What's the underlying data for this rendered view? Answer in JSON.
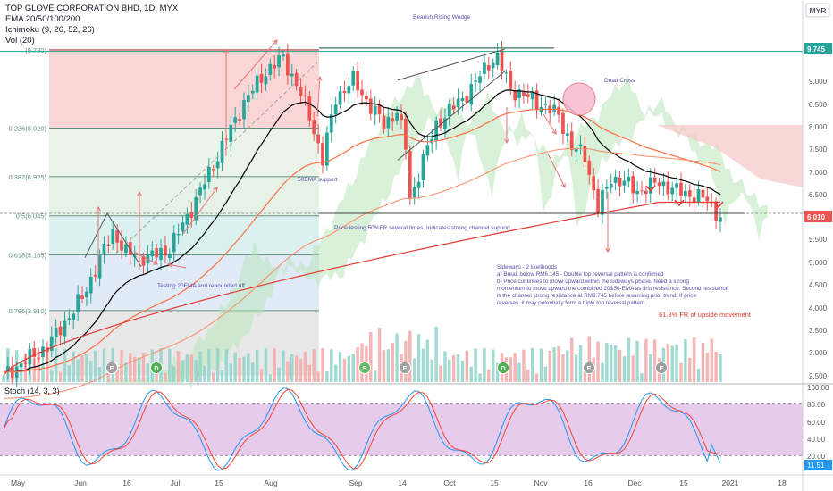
{
  "header": {
    "symbol_title": "TOP GLOVE CORPORATION BHD, 1D, MYX",
    "indicators": [
      "EMA 20/50/100/200",
      "Ichimoku (9, 26, 52, 26)",
      "Vol (20)"
    ],
    "currency": "MYR"
  },
  "chart_data": {
    "type": "candlestick",
    "price_axis": {
      "ylim": [
        2.3,
        10.1
      ],
      "ticks": [
        "2.500",
        "3.000",
        "3.500",
        "4.000",
        "4.500",
        "5.000",
        "5.500",
        "6.500",
        "7.000",
        "7.500",
        "8.000",
        "8.500",
        "9.000"
      ],
      "last_price_label": "6.010",
      "high_label": "9.745"
    },
    "time_axis": {
      "labels": [
        "May",
        "Jun",
        "16",
        "Jul",
        "15",
        "Aug",
        "Sep",
        "14",
        "Oct",
        "15",
        "Nov",
        "16",
        "Dec",
        "15",
        "2021",
        "18"
      ]
    },
    "fibonacci_levels": [
      {
        "label": "(9.780)",
        "value": 9.78
      },
      {
        "label": "0.236(8.020)",
        "value": 8.02
      },
      {
        "label": "0.382(6.925)",
        "value": 6.925
      },
      {
        "label": "0.5(6.045)",
        "value": 6.045
      },
      {
        "label": "0.618(5.165)",
        "value": 5.165
      },
      {
        "label": "0.786(3.910)",
        "value": 3.91
      }
    ],
    "annotations": {
      "wedge": "Bearish Rising Wedge",
      "dead_cross": "Dead Cross",
      "ema50": "50EMA support",
      "ema20": "Testing 20EMA and rebounded off",
      "fr50": "Price testing 50%FR several times. Indicates strong channel support",
      "fr618": "61.8% FR of upside movement",
      "sideways": [
        "Sideways - 2 likelihoods",
        "a) Break below RM6.145 - Double top reversal pattern is confirmed",
        "b) Price continues to move upward within the sideways phase. Need a strong",
        "momentum to move upward the combined 20&50-EMA as first resistance. Second resistance",
        "is the channel strong resistance at RM9.745 before resuming prior trend. If price",
        "reverses, it may potentially form a triple top reversal pattern"
      ]
    },
    "event_markers": [
      "E",
      "D",
      "S",
      "E",
      "D",
      "E",
      "E"
    ],
    "stoch": {
      "label": "Stoch (14, 3, 3)",
      "ylim": [
        0,
        100
      ],
      "ticks": [
        "100.00",
        "80.00",
        "60.00",
        "40.00",
        "20.00"
      ],
      "last_value_label": "11.51"
    },
    "colors": {
      "up": "#26a69a",
      "down": "#ef5350",
      "ema20": "#000000",
      "ema50": "#333333",
      "ema100": "#ff7043",
      "ema200": "#e53935",
      "fib": "#4a7d6a",
      "annotation": "#5b4ea8",
      "stoch_k": "#2196f3",
      "stoch_d": "#f44336",
      "stoch_band": "#e1bee7"
    }
  }
}
